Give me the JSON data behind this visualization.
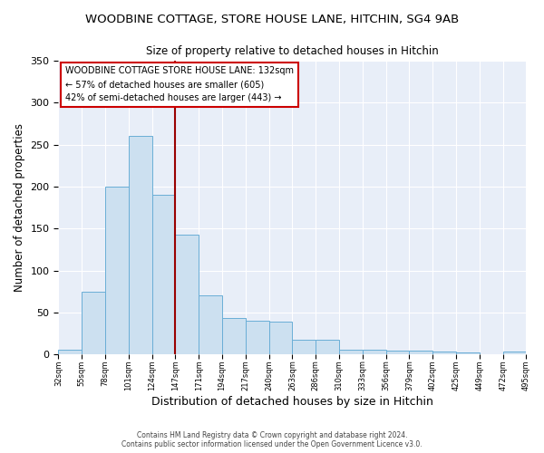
{
  "title": "WOODBINE COTTAGE, STORE HOUSE LANE, HITCHIN, SG4 9AB",
  "subtitle": "Size of property relative to detached houses in Hitchin",
  "xlabel": "Distribution of detached houses by size in Hitchin",
  "ylabel": "Number of detached properties",
  "bar_values": [
    6,
    75,
    200,
    260,
    190,
    143,
    70,
    43,
    40,
    39,
    18,
    18,
    6,
    6,
    5,
    4,
    3,
    2,
    0,
    3
  ],
  "categories": [
    "32sqm",
    "55sqm",
    "78sqm",
    "101sqm",
    "124sqm",
    "147sqm",
    "171sqm",
    "194sqm",
    "217sqm",
    "240sqm",
    "263sqm",
    "286sqm",
    "310sqm",
    "333sqm",
    "356sqm",
    "379sqm",
    "402sqm",
    "425sqm",
    "449sqm",
    "472sqm",
    "495sqm"
  ],
  "bar_color": "#cce0f0",
  "bar_edge_color": "#6aaed6",
  "vline_x_bar_index": 4,
  "property_line_label": "WOODBINE COTTAGE STORE HOUSE LANE: 132sqm",
  "annotation_line1": "← 57% of detached houses are smaller (605)",
  "annotation_line2": "42% of semi-detached houses are larger (443) →",
  "vline_color": "#990000",
  "annotation_box_color": "#ffffff",
  "annotation_box_edge": "#cc0000",
  "ylim": [
    0,
    350
  ],
  "yticks": [
    0,
    50,
    100,
    150,
    200,
    250,
    300,
    350
  ],
  "background_color": "#e8eef8",
  "footer1": "Contains HM Land Registry data © Crown copyright and database right 2024.",
  "footer2": "Contains public sector information licensed under the Open Government Licence v3.0."
}
